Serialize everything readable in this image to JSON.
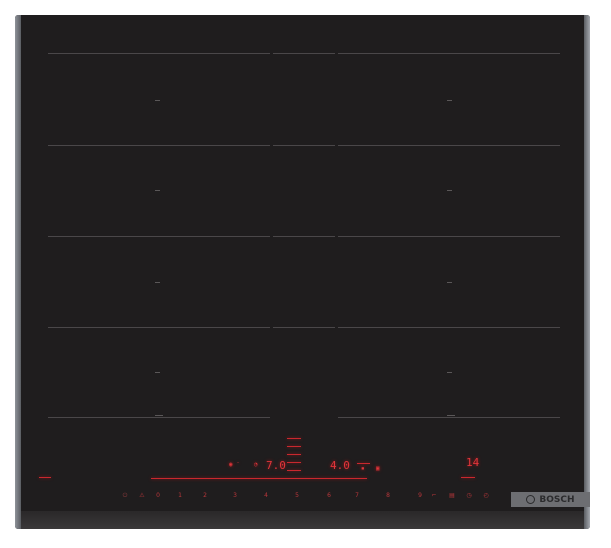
{
  "brand": {
    "name": "BOSCH",
    "label_color": "#6d6e72"
  },
  "colors": {
    "glass": "#1f1d1e",
    "led": "#e0353a",
    "frame": "#8e9299"
  },
  "displays": {
    "left_zone_power": "7.0",
    "right_zone_power": "4.0",
    "timer": "14"
  },
  "power_keys": [
    "0",
    "1",
    "2",
    "3",
    "4",
    "5",
    "6",
    "7",
    "8",
    "9"
  ],
  "icons": [
    "power-icon",
    "powerboost-icon",
    "keep-warm-icon",
    "wipe-protection-icon",
    "timer-icon",
    "clock-icon",
    "lock-icon",
    "flex-zone-icon",
    "sensor-icon"
  ]
}
